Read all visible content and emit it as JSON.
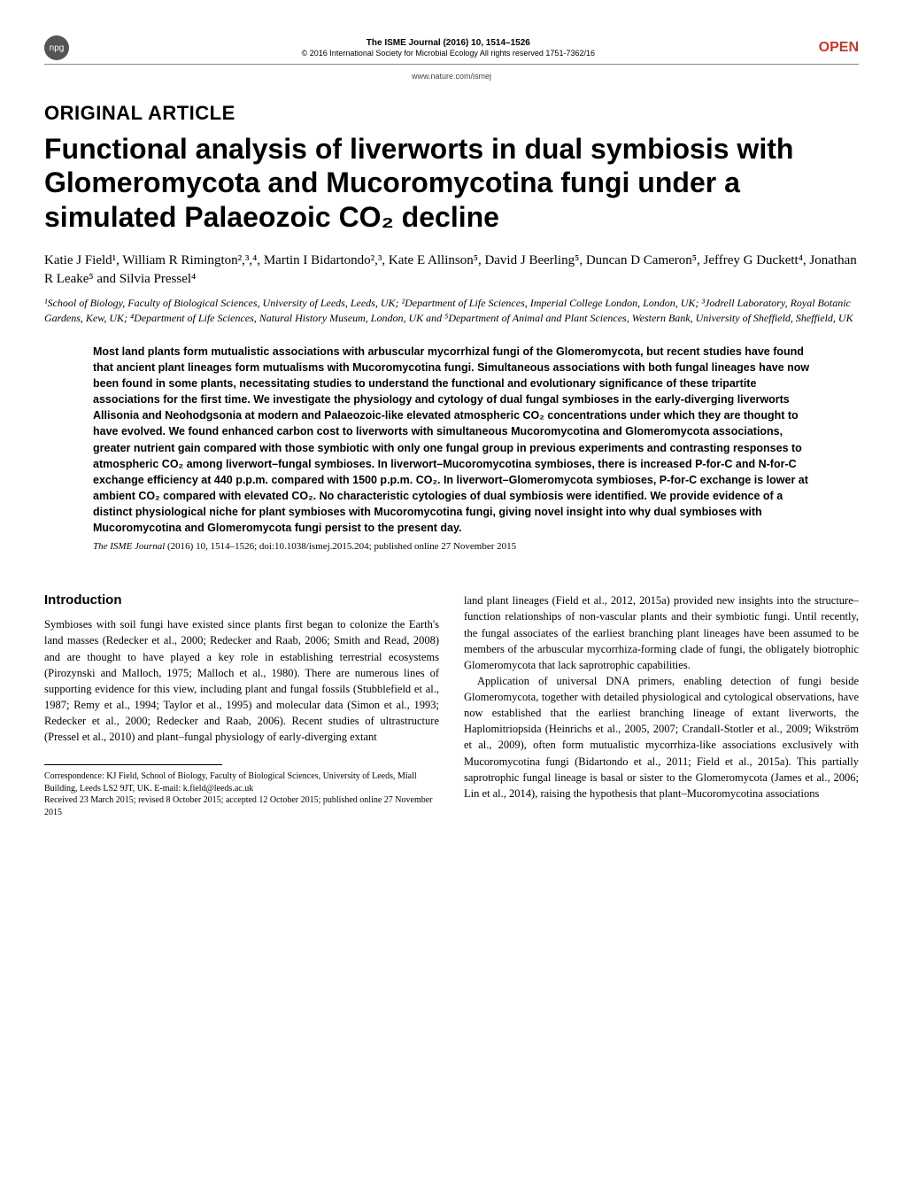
{
  "header": {
    "npg_label": "npg",
    "journal_title": "The ISME Journal (2016) 10, 1514–1526",
    "copyright": "© 2016 International Society for Microbial Ecology  All rights reserved 1751-7362/16",
    "website": "www.nature.com/ismej",
    "open_label": "OPEN"
  },
  "article": {
    "type": "ORIGINAL ARTICLE",
    "title": "Functional analysis of liverworts in dual symbiosis with Glomeromycota and Mucoromycotina fungi under a simulated Palaeozoic CO₂ decline",
    "authors": "Katie J Field¹, William R Rimington²,³,⁴, Martin I Bidartondo²,³, Kate E Allinson⁵, David J Beerling⁵, Duncan D Cameron⁵, Jeffrey G Duckett⁴, Jonathan R Leake⁵ and Silvia Pressel⁴",
    "affiliations": "¹School of Biology, Faculty of Biological Sciences, University of Leeds, Leeds, UK; ²Department of Life Sciences, Imperial College London, London, UK; ³Jodrell Laboratory, Royal Botanic Gardens, Kew, UK; ⁴Department of Life Sciences, Natural History Museum, London, UK and ⁵Department of Animal and Plant Sciences, Western Bank, University of Sheffield, Sheffield, UK"
  },
  "abstract": {
    "text": "Most land plants form mutualistic associations with arbuscular mycorrhizal fungi of the Glomeromycota, but recent studies have found that ancient plant lineages form mutualisms with Mucoromycotina fungi. Simultaneous associations with both fungal lineages have now been found in some plants, necessitating studies to understand the functional and evolutionary significance of these tripartite associations for the first time. We investigate the physiology and cytology of dual fungal symbioses in the early-diverging liverworts Allisonia and Neohodgsonia at modern and Palaeozoic-like elevated atmospheric CO₂ concentrations under which they are thought to have evolved. We found enhanced carbon cost to liverworts with simultaneous Mucoromycotina and Glomeromycota associations, greater nutrient gain compared with those symbiotic with only one fungal group in previous experiments and contrasting responses to atmospheric CO₂ among liverwort–fungal symbioses. In liverwort–Mucoromycotina symbioses, there is increased P-for-C and N-for-C exchange efficiency at 440 p.p.m. compared with 1500 p.p.m. CO₂. In liverwort–Glomeromycota symbioses, P-for-C exchange is lower at ambient CO₂ compared with elevated CO₂. No characteristic cytologies of dual symbiosis were identified. We provide evidence of a distinct physiological niche for plant symbioses with Mucoromycotina fungi, giving novel insight into why dual symbioses with Mucoromycotina and Glomeromycota fungi persist to the present day."
  },
  "citation": {
    "journal_ital": "The ISME Journal",
    "details": " (2016) 10, 1514–1526; doi:10.1038/ismej.2015.204; published online 27 November 2015"
  },
  "body": {
    "section_heading": "Introduction",
    "left_para": "Symbioses with soil fungi have existed since plants first began to colonize the Earth's land masses (Redecker et al., 2000; Redecker and Raab, 2006; Smith and Read, 2008) and are thought to have played a key role in establishing terrestrial ecosystems (Pirozynski and Malloch, 1975; Malloch et al., 1980). There are numerous lines of supporting evidence for this view, including plant and fungal fossils (Stubblefield et al., 1987; Remy et al., 1994; Taylor et al., 1995) and molecular data (Simon et al., 1993; Redecker et al., 2000; Redecker and Raab, 2006). Recent studies of ultrastructure (Pressel et al., 2010) and plant–fungal physiology of early-diverging extant",
    "right_para1": "land plant lineages (Field et al., 2012, 2015a) provided new insights into the structure–function relationships of non-vascular plants and their symbiotic fungi. Until recently, the fungal associates of the earliest branching plant lineages have been assumed to be members of the arbuscular mycorrhiza-forming clade of fungi, the obligately biotrophic Glomeromycota that lack saprotrophic capabilities.",
    "right_para2": "Application of universal DNA primers, enabling detection of fungi beside Glomeromycota, together with detailed physiological and cytological observations, have now established that the earliest branching lineage of extant liverworts, the Haplomitriopsida (Heinrichs et al., 2005, 2007; Crandall-Stotler et al., 2009; Wikström et al., 2009), often form mutualistic mycorrhiza-like associations exclusively with Mucoromycotina fungi (Bidartondo et al., 2011; Field et al., 2015a). This partially saprotrophic fungal lineage is basal or sister to the Glomeromycota (James et al., 2006; Lin et al., 2014), raising the hypothesis that plant–Mucoromycotina associations"
  },
  "footnote": {
    "correspondence": "Correspondence: KJ Field, School of Biology, Faculty of Biological Sciences, University of Leeds, Miall Building, Leeds LS2 9JT, UK. E-mail: k.field@leeds.ac.uk",
    "received": "Received 23 March 2015; revised 8 October 2015; accepted 12 October 2015; published online 27 November 2015"
  },
  "styling": {
    "page_background": "#ffffff",
    "open_color": "#c0392b",
    "npg_bg": "#555555",
    "body_font": "Georgia",
    "sans_font": "Arial",
    "title_fontsize": 32,
    "article_type_fontsize": 22,
    "body_fontsize": 12.5,
    "abstract_fontsize": 12.5
  }
}
